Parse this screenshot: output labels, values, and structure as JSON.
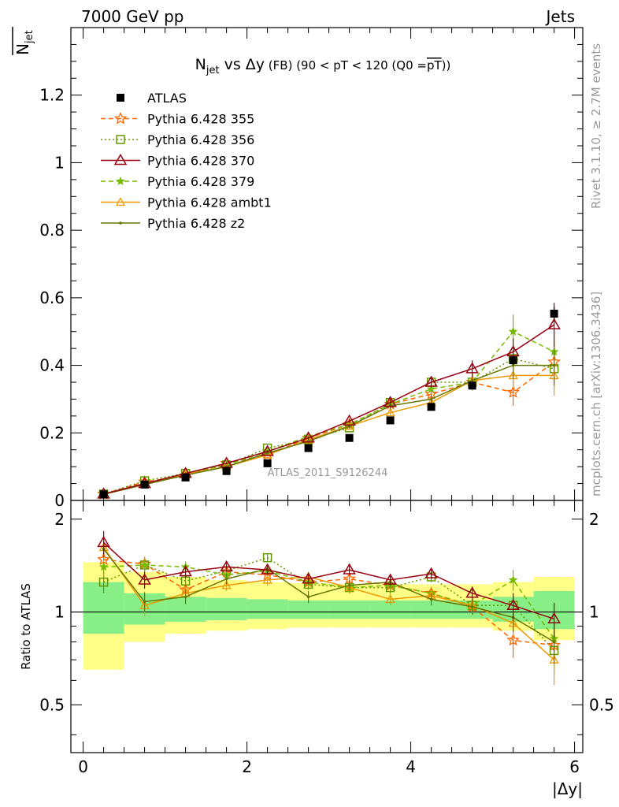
{
  "header": {
    "left": "7000 GeV pp",
    "right": "Jets"
  },
  "side_labels": {
    "rivet": "Rivet 3.1.10, ≥ 2.7M events",
    "mcplots": "mcplots.cern.ch [arXiv:1306.3436]"
  },
  "watermark": "ATLAS_2011_S9126244",
  "chart_data": [
    {
      "type": "line",
      "title": "N_jet vs Δy (FB) (90 < pT < 120 (Q0 = pT))",
      "title_parts": {
        "main": "N",
        "sub": "jet",
        "mid": " vs Δy",
        "small": " (FB) (90 < pT < 120 (Q0 =",
        "over": "pT",
        "end": "))"
      },
      "ylabel": "N̅jet",
      "ylabel_parts": {
        "main": "N",
        "sub": "jet"
      },
      "xlim": [
        -0.15,
        6.1
      ],
      "ylim": [
        0,
        1.4
      ],
      "y_ticks": [
        "0",
        "0.2",
        "0.4",
        "0.6",
        "0.8",
        "1",
        "1.2"
      ],
      "legend_position": "top-left",
      "x": [
        0.25,
        0.75,
        1.25,
        1.75,
        2.25,
        2.75,
        3.25,
        3.75,
        4.25,
        4.75,
        5.25,
        5.75
      ],
      "series": [
        {
          "name": "ATLAS",
          "color": "#000000",
          "marker": "square",
          "dash": "none",
          "values": [
            0.018,
            0.047,
            0.068,
            0.087,
            0.11,
            0.155,
            0.185,
            0.237,
            0.277,
            0.34,
            0.415,
            0.553
          ],
          "errors": [
            0.001,
            0.001,
            0.002,
            0.002,
            0.003,
            0.003,
            0.004,
            0.005,
            0.006,
            0.008,
            0.01,
            0.02
          ]
        },
        {
          "name": "Pythia 6.428 355",
          "color": "#ff6600",
          "marker": "star",
          "dash": "dashed",
          "values": [
            0.019,
            0.055,
            0.073,
            0.11,
            0.135,
            0.185,
            0.225,
            0.285,
            0.315,
            0.35,
            0.32,
            0.41
          ],
          "errors": [
            0.001,
            0.001,
            0.002,
            0.002,
            0.003,
            0.004,
            0.005,
            0.008,
            0.01,
            0.015,
            0.04,
            0.06
          ]
        },
        {
          "name": "Pythia 6.428 356",
          "color": "#669900",
          "marker": "open-square",
          "dash": "dotted",
          "values": [
            0.019,
            0.058,
            0.08,
            0.105,
            0.155,
            0.18,
            0.215,
            0.29,
            0.35,
            0.35,
            0.42,
            0.39
          ],
          "errors": [
            0.001,
            0.002,
            0.002,
            0.003,
            0.004,
            0.005,
            0.006,
            0.01,
            0.015,
            0.02,
            0.04,
            0.06
          ]
        },
        {
          "name": "Pythia 6.428 370",
          "color": "#990011",
          "marker": "open-triangle",
          "dash": "none",
          "values": [
            0.019,
            0.05,
            0.08,
            0.11,
            0.145,
            0.185,
            0.235,
            0.29,
            0.35,
            0.39,
            0.44,
            0.52
          ],
          "errors": [
            0.001,
            0.002,
            0.002,
            0.003,
            0.004,
            0.005,
            0.006,
            0.01,
            0.015,
            0.025,
            0.04,
            0.065
          ]
        },
        {
          "name": "Pythia 6.428 379",
          "color": "#77bb00",
          "marker": "filled-star",
          "dash": "dashed",
          "values": [
            0.019,
            0.05,
            0.08,
            0.105,
            0.145,
            0.19,
            0.225,
            0.285,
            0.33,
            0.35,
            0.5,
            0.44
          ],
          "errors": [
            0.001,
            0.002,
            0.002,
            0.003,
            0.004,
            0.005,
            0.006,
            0.01,
            0.015,
            0.025,
            0.05,
            0.06
          ]
        },
        {
          "name": "Pythia 6.428 ambt1",
          "color": "#ee9900",
          "marker": "open-triangle-small",
          "dash": "none",
          "values": [
            0.018,
            0.048,
            0.078,
            0.1,
            0.135,
            0.18,
            0.22,
            0.26,
            0.29,
            0.355,
            0.37,
            0.37
          ],
          "errors": [
            0.001,
            0.002,
            0.002,
            0.003,
            0.004,
            0.005,
            0.006,
            0.01,
            0.015,
            0.025,
            0.04,
            0.06
          ]
        },
        {
          "name": "Pythia 6.428 z2",
          "color": "#667700",
          "marker": "dot",
          "dash": "none",
          "values": [
            0.018,
            0.047,
            0.075,
            0.1,
            0.14,
            0.175,
            0.22,
            0.28,
            0.3,
            0.355,
            0.4,
            0.4
          ],
          "errors": [
            0.001,
            0.002,
            0.002,
            0.003,
            0.004,
            0.005,
            0.006,
            0.01,
            0.015,
            0.025,
            0.04,
            0.06
          ]
        }
      ]
    },
    {
      "type": "line",
      "ylabel": "Ratio to ATLAS",
      "xlabel": "|Δy|",
      "xlim": [
        -0.15,
        6.1
      ],
      "ylim": [
        0.35,
        2.3
      ],
      "x_ticks": [
        "0",
        "2",
        "4",
        "6"
      ],
      "y_ticks": [
        "0.5",
        "1",
        "2"
      ],
      "reference_line": 1,
      "bands": {
        "bin_edges": [
          0,
          0.5,
          1,
          1.5,
          2,
          2.5,
          3,
          3.5,
          4,
          4.5,
          5,
          5.5,
          6
        ],
        "yellow": [
          [
            0.65,
            1.45
          ],
          [
            0.8,
            1.35
          ],
          [
            0.85,
            1.3
          ],
          [
            0.87,
            1.27
          ],
          [
            0.88,
            1.25
          ],
          [
            0.89,
            1.24
          ],
          [
            0.89,
            1.23
          ],
          [
            0.89,
            1.23
          ],
          [
            0.89,
            1.23
          ],
          [
            0.89,
            1.23
          ],
          [
            0.87,
            1.25
          ],
          [
            0.81,
            1.3
          ]
        ],
        "green": [
          [
            0.85,
            1.25
          ],
          [
            0.91,
            1.15
          ],
          [
            0.93,
            1.12
          ],
          [
            0.94,
            1.11
          ],
          [
            0.95,
            1.1
          ],
          [
            0.95,
            1.09
          ],
          [
            0.95,
            1.09
          ],
          [
            0.95,
            1.09
          ],
          [
            0.95,
            1.09
          ],
          [
            0.95,
            1.09
          ],
          [
            0.93,
            1.12
          ],
          [
            0.88,
            1.17
          ]
        ]
      },
      "series": [
        {
          "name": "Pythia 6.428 355",
          "values": [
            1.48,
            1.43,
            1.18,
            1.35,
            1.32,
            1.25,
            1.28,
            1.22,
            1.15,
            1.04,
            0.81,
            0.78
          ],
          "errors": [
            0.1,
            0.08,
            0.06,
            0.05,
            0.05,
            0.05,
            0.05,
            0.05,
            0.05,
            0.06,
            0.1,
            0.12
          ]
        },
        {
          "name": "Pythia 6.428 356",
          "values": [
            1.25,
            1.42,
            1.26,
            1.36,
            1.5,
            1.23,
            1.2,
            1.2,
            1.3,
            1.05,
            1.05,
            0.75
          ],
          "errors": [
            0.1,
            0.08,
            0.06,
            0.05,
            0.05,
            0.05,
            0.05,
            0.05,
            0.05,
            0.06,
            0.1,
            0.12
          ]
        },
        {
          "name": "Pythia 6.428 370",
          "values": [
            1.68,
            1.27,
            1.35,
            1.4,
            1.37,
            1.28,
            1.37,
            1.27,
            1.33,
            1.15,
            1.05,
            0.95
          ],
          "errors": [
            0.15,
            0.08,
            0.06,
            0.05,
            0.05,
            0.05,
            0.05,
            0.05,
            0.05,
            0.06,
            0.1,
            0.12
          ]
        },
        {
          "name": "Pythia 6.428 379",
          "values": [
            1.4,
            1.42,
            1.4,
            1.32,
            1.36,
            1.25,
            1.2,
            1.22,
            1.15,
            1.05,
            1.27,
            0.82
          ],
          "errors": [
            0.1,
            0.08,
            0.06,
            0.05,
            0.05,
            0.05,
            0.05,
            0.05,
            0.05,
            0.06,
            0.1,
            0.12
          ]
        },
        {
          "name": "Pythia 6.428 ambt1",
          "values": [
            1.62,
            1.05,
            1.15,
            1.22,
            1.27,
            1.3,
            1.2,
            1.1,
            1.13,
            1.05,
            0.92,
            0.7
          ],
          "errors": [
            0.12,
            0.08,
            0.06,
            0.05,
            0.05,
            0.05,
            0.05,
            0.05,
            0.05,
            0.06,
            0.1,
            0.12
          ]
        },
        {
          "name": "Pythia 6.428 z2",
          "values": [
            1.6,
            1.08,
            1.12,
            1.28,
            1.38,
            1.12,
            1.22,
            1.25,
            1.1,
            1.04,
            0.96,
            0.8
          ],
          "errors": [
            0.1,
            0.08,
            0.06,
            0.05,
            0.05,
            0.05,
            0.05,
            0.05,
            0.05,
            0.06,
            0.1,
            0.12
          ]
        }
      ]
    }
  ]
}
